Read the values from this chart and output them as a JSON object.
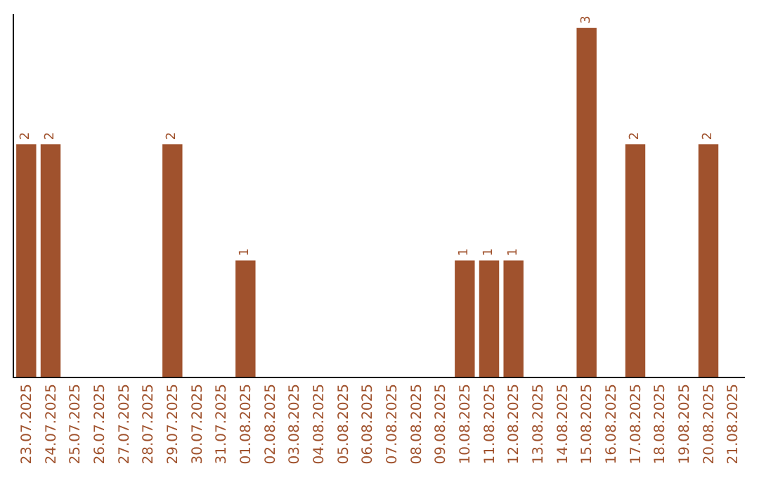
{
  "chart_data": {
    "type": "bar",
    "categories": [
      "23.07.2025",
      "24.07.2025",
      "25.07.2025",
      "26.07.2025",
      "27.07.2025",
      "28.07.2025",
      "29.07.2025",
      "30.07.2025",
      "31.07.2025",
      "01.08.2025",
      "02.08.2025",
      "03.08.2025",
      "04.08.2025",
      "05.08.2025",
      "06.08.2025",
      "07.08.2025",
      "08.08.2025",
      "09.08.2025",
      "10.08.2025",
      "11.08.2025",
      "12.08.2025",
      "13.08.2025",
      "14.08.2025",
      "15.08.2025",
      "16.08.2025",
      "17.08.2025",
      "18.08.2025",
      "19.08.2025",
      "20.08.2025",
      "21.08.2025"
    ],
    "values": [
      2,
      2,
      0,
      0,
      0,
      0,
      2,
      0,
      0,
      1,
      0,
      0,
      0,
      0,
      0,
      0,
      0,
      0,
      1,
      1,
      1,
      0,
      0,
      3,
      0,
      2,
      0,
      0,
      2,
      0
    ],
    "value_labels": [
      "2",
      "2",
      null,
      null,
      null,
      null,
      "2",
      null,
      null,
      "1",
      null,
      null,
      null,
      null,
      null,
      null,
      null,
      null,
      "1",
      "1",
      "1",
      null,
      null,
      "3",
      null,
      "2",
      null,
      null,
      "2",
      null
    ],
    "color": "#a0522d",
    "tick_labels": "x"
  }
}
